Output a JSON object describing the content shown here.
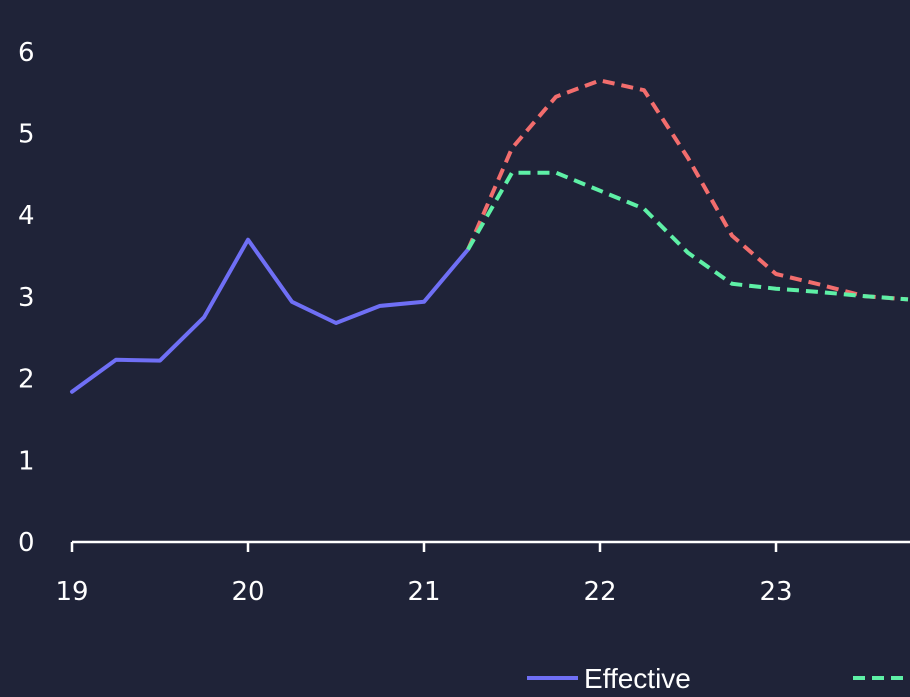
{
  "chart_data": {
    "type": "line",
    "title": "",
    "xlabel": "",
    "ylabel": "",
    "xlim": [
      19,
      23.75
    ],
    "ylim": [
      0,
      6
    ],
    "x_ticks": [
      19,
      20,
      21,
      22,
      23
    ],
    "y_ticks": [
      0,
      1,
      2,
      3,
      4,
      5,
      6
    ],
    "grid": false,
    "legend_position": "bottom",
    "series": [
      {
        "name": "Effective",
        "color": "#6f6ff5",
        "dash": "solid",
        "x": [
          19,
          19.25,
          19.5,
          19.75,
          20,
          20.25,
          20.5,
          20.75,
          21,
          21.25
        ],
        "y": [
          1.84,
          2.23,
          2.22,
          2.75,
          3.7,
          2.94,
          2.68,
          2.89,
          2.94,
          3.58
        ]
      },
      {
        "name": "",
        "color": "#f26d6d",
        "dash": "dashed",
        "x": [
          21.25,
          21.5,
          21.75,
          22,
          22.25,
          22.5,
          22.75,
          23,
          23.25,
          23.5,
          23.75
        ],
        "y": [
          3.58,
          4.82,
          5.45,
          5.65,
          5.53,
          4.7,
          3.75,
          3.28,
          3.15,
          3.01,
          2.97
        ]
      },
      {
        "name": "",
        "color": "#5ef0a6",
        "dash": "dashed",
        "x": [
          21.25,
          21.5,
          21.75,
          22,
          22.25,
          22.5,
          22.75,
          23,
          23.25,
          23.5,
          23.75
        ],
        "y": [
          3.58,
          4.52,
          4.52,
          4.3,
          4.08,
          3.54,
          3.16,
          3.1,
          3.06,
          3.01,
          2.97
        ]
      }
    ]
  }
}
